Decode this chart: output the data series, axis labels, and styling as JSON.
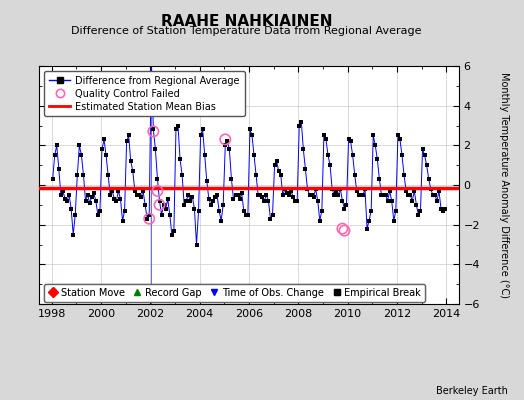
{
  "title": "RAAHE NAHKIAINEN",
  "subtitle": "Difference of Station Temperature Data from Regional Average",
  "ylabel": "Monthly Temperature Anomaly Difference (°C)",
  "xlabel_ticks": [
    1998,
    2000,
    2002,
    2004,
    2006,
    2008,
    2010,
    2012,
    2014
  ],
  "ylim": [
    -6,
    6
  ],
  "xlim": [
    1997.5,
    2014.5
  ],
  "mean_bias": -0.15,
  "line_color": "#0000ff",
  "dot_color": "#000000",
  "bias_color": "#ff0000",
  "qc_color": "#ff69b4",
  "background_color": "#d8d8d8",
  "plot_bg_color": "#ffffff",
  "watermark": "Berkeley Earth",
  "time_series": [
    [
      1998.042,
      0.3
    ],
    [
      1998.125,
      1.5
    ],
    [
      1998.208,
      2.0
    ],
    [
      1998.292,
      0.8
    ],
    [
      1998.375,
      -0.5
    ],
    [
      1998.458,
      -0.3
    ],
    [
      1998.542,
      -0.7
    ],
    [
      1998.625,
      -0.8
    ],
    [
      1998.708,
      -0.5
    ],
    [
      1998.792,
      -1.2
    ],
    [
      1998.875,
      -2.5
    ],
    [
      1998.958,
      -1.5
    ],
    [
      1999.042,
      0.5
    ],
    [
      1999.125,
      2.0
    ],
    [
      1999.208,
      1.5
    ],
    [
      1999.292,
      0.5
    ],
    [
      1999.375,
      -0.8
    ],
    [
      1999.458,
      -0.5
    ],
    [
      1999.542,
      -0.9
    ],
    [
      1999.625,
      -0.6
    ],
    [
      1999.708,
      -0.4
    ],
    [
      1999.792,
      -0.8
    ],
    [
      1999.875,
      -1.5
    ],
    [
      1999.958,
      -1.3
    ],
    [
      2000.042,
      1.8
    ],
    [
      2000.125,
      2.3
    ],
    [
      2000.208,
      1.5
    ],
    [
      2000.292,
      0.5
    ],
    [
      2000.375,
      -0.5
    ],
    [
      2000.458,
      -0.3
    ],
    [
      2000.542,
      -0.7
    ],
    [
      2000.625,
      -0.8
    ],
    [
      2000.708,
      -0.3
    ],
    [
      2000.792,
      -0.7
    ],
    [
      2000.875,
      -1.8
    ],
    [
      2000.958,
      -1.3
    ],
    [
      2001.042,
      2.2
    ],
    [
      2001.125,
      2.5
    ],
    [
      2001.208,
      1.2
    ],
    [
      2001.292,
      0.7
    ],
    [
      2001.375,
      -0.3
    ],
    [
      2001.458,
      -0.5
    ],
    [
      2001.542,
      -0.5
    ],
    [
      2001.625,
      -0.6
    ],
    [
      2001.708,
      -0.3
    ],
    [
      2001.792,
      -1.0
    ],
    [
      2001.875,
      -1.7
    ],
    [
      2001.958,
      -1.5
    ],
    [
      2002.042,
      6.5
    ],
    [
      2002.125,
      2.8
    ],
    [
      2002.208,
      1.8
    ],
    [
      2002.292,
      0.3
    ],
    [
      2002.375,
      -0.8
    ],
    [
      2002.458,
      -1.5
    ],
    [
      2002.542,
      -1.0
    ],
    [
      2002.625,
      -1.2
    ],
    [
      2002.708,
      -0.7
    ],
    [
      2002.792,
      -1.5
    ],
    [
      2002.875,
      -2.5
    ],
    [
      2002.958,
      -2.3
    ],
    [
      2003.042,
      2.8
    ],
    [
      2003.125,
      3.0
    ],
    [
      2003.208,
      1.3
    ],
    [
      2003.292,
      0.5
    ],
    [
      2003.375,
      -1.0
    ],
    [
      2003.458,
      -0.8
    ],
    [
      2003.542,
      -0.5
    ],
    [
      2003.625,
      -0.8
    ],
    [
      2003.708,
      -0.6
    ],
    [
      2003.792,
      -1.2
    ],
    [
      2003.875,
      -3.0
    ],
    [
      2003.958,
      -1.3
    ],
    [
      2004.042,
      2.5
    ],
    [
      2004.125,
      2.8
    ],
    [
      2004.208,
      1.5
    ],
    [
      2004.292,
      0.2
    ],
    [
      2004.375,
      -0.7
    ],
    [
      2004.458,
      -1.0
    ],
    [
      2004.542,
      -0.8
    ],
    [
      2004.625,
      -0.6
    ],
    [
      2004.708,
      -0.5
    ],
    [
      2004.792,
      -1.3
    ],
    [
      2004.875,
      -1.8
    ],
    [
      2004.958,
      -1.0
    ],
    [
      2005.042,
      2.0
    ],
    [
      2005.125,
      2.2
    ],
    [
      2005.208,
      1.8
    ],
    [
      2005.292,
      0.3
    ],
    [
      2005.375,
      -0.7
    ],
    [
      2005.458,
      -0.5
    ],
    [
      2005.542,
      -0.5
    ],
    [
      2005.625,
      -0.7
    ],
    [
      2005.708,
      -0.4
    ],
    [
      2005.792,
      -1.3
    ],
    [
      2005.875,
      -1.5
    ],
    [
      2005.958,
      -1.5
    ],
    [
      2006.042,
      2.8
    ],
    [
      2006.125,
      2.5
    ],
    [
      2006.208,
      1.5
    ],
    [
      2006.292,
      0.5
    ],
    [
      2006.375,
      -0.5
    ],
    [
      2006.458,
      -0.5
    ],
    [
      2006.542,
      -0.6
    ],
    [
      2006.625,
      -0.8
    ],
    [
      2006.708,
      -0.5
    ],
    [
      2006.792,
      -0.8
    ],
    [
      2006.875,
      -1.7
    ],
    [
      2006.958,
      -1.5
    ],
    [
      2007.042,
      1.0
    ],
    [
      2007.125,
      1.2
    ],
    [
      2007.208,
      0.7
    ],
    [
      2007.292,
      0.5
    ],
    [
      2007.375,
      -0.5
    ],
    [
      2007.458,
      -0.2
    ],
    [
      2007.542,
      -0.4
    ],
    [
      2007.625,
      -0.5
    ],
    [
      2007.708,
      -0.3
    ],
    [
      2007.792,
      -0.6
    ],
    [
      2007.875,
      -0.8
    ],
    [
      2007.958,
      -0.8
    ],
    [
      2008.042,
      3.0
    ],
    [
      2008.125,
      3.2
    ],
    [
      2008.208,
      1.8
    ],
    [
      2008.292,
      0.8
    ],
    [
      2008.375,
      -0.2
    ],
    [
      2008.458,
      -0.5
    ],
    [
      2008.542,
      -0.5
    ],
    [
      2008.625,
      -0.6
    ],
    [
      2008.708,
      -0.2
    ],
    [
      2008.792,
      -0.8
    ],
    [
      2008.875,
      -1.8
    ],
    [
      2008.958,
      -1.3
    ],
    [
      2009.042,
      2.5
    ],
    [
      2009.125,
      2.3
    ],
    [
      2009.208,
      1.5
    ],
    [
      2009.292,
      1.0
    ],
    [
      2009.375,
      -0.2
    ],
    [
      2009.458,
      -0.5
    ],
    [
      2009.542,
      -0.3
    ],
    [
      2009.625,
      -0.5
    ],
    [
      2009.708,
      -0.2
    ],
    [
      2009.792,
      -0.8
    ],
    [
      2009.875,
      -1.2
    ],
    [
      2009.958,
      -1.0
    ],
    [
      2010.042,
      2.3
    ],
    [
      2010.125,
      2.2
    ],
    [
      2010.208,
      1.5
    ],
    [
      2010.292,
      0.5
    ],
    [
      2010.375,
      -0.3
    ],
    [
      2010.458,
      -0.5
    ],
    [
      2010.542,
      -0.5
    ],
    [
      2010.625,
      -0.5
    ],
    [
      2010.708,
      -0.2
    ],
    [
      2010.792,
      -2.2
    ],
    [
      2010.875,
      -1.8
    ],
    [
      2010.958,
      -1.3
    ],
    [
      2011.042,
      2.5
    ],
    [
      2011.125,
      2.0
    ],
    [
      2011.208,
      1.3
    ],
    [
      2011.292,
      0.3
    ],
    [
      2011.375,
      -0.5
    ],
    [
      2011.458,
      -0.5
    ],
    [
      2011.542,
      -0.5
    ],
    [
      2011.625,
      -0.8
    ],
    [
      2011.708,
      -0.3
    ],
    [
      2011.792,
      -0.8
    ],
    [
      2011.875,
      -1.8
    ],
    [
      2011.958,
      -1.3
    ],
    [
      2012.042,
      2.5
    ],
    [
      2012.125,
      2.3
    ],
    [
      2012.208,
      1.5
    ],
    [
      2012.292,
      0.5
    ],
    [
      2012.375,
      -0.3
    ],
    [
      2012.458,
      -0.5
    ],
    [
      2012.542,
      -0.5
    ],
    [
      2012.625,
      -0.8
    ],
    [
      2012.708,
      -0.3
    ],
    [
      2012.792,
      -1.0
    ],
    [
      2012.875,
      -1.5
    ],
    [
      2012.958,
      -1.3
    ],
    [
      2013.042,
      1.8
    ],
    [
      2013.125,
      1.5
    ],
    [
      2013.208,
      1.0
    ],
    [
      2013.292,
      0.3
    ],
    [
      2013.375,
      -0.2
    ],
    [
      2013.458,
      -0.5
    ],
    [
      2013.542,
      -0.5
    ],
    [
      2013.625,
      -0.8
    ],
    [
      2013.708,
      -0.3
    ],
    [
      2013.792,
      -1.2
    ],
    [
      2013.875,
      -1.3
    ],
    [
      2013.958,
      -1.2
    ]
  ],
  "qc_failed_points": [
    [
      2001.958,
      -1.7
    ],
    [
      2002.125,
      2.7
    ],
    [
      2002.292,
      -0.3
    ],
    [
      2002.375,
      -1.0
    ],
    [
      2005.042,
      2.3
    ],
    [
      2009.792,
      -2.2
    ],
    [
      2009.875,
      -2.3
    ]
  ],
  "time_obs_changes": [
    2002.042
  ]
}
